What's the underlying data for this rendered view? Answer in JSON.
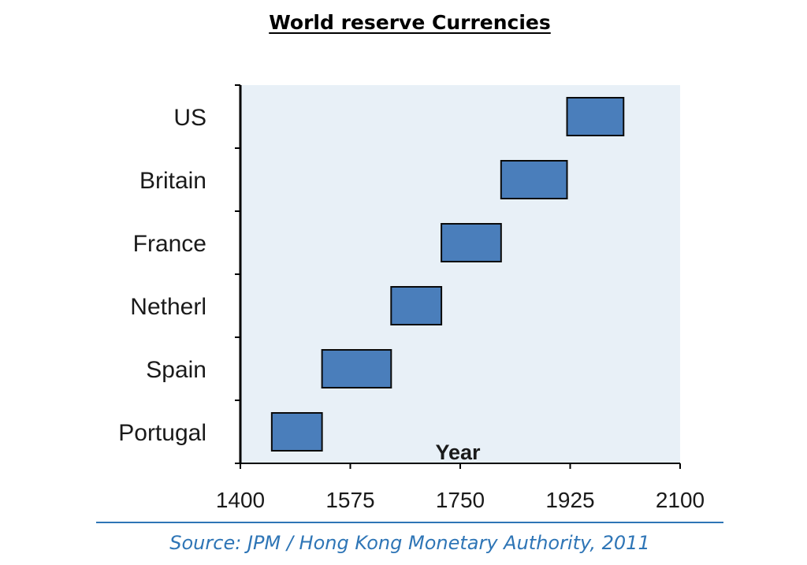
{
  "page": {
    "title": "World reserve Currencies",
    "source": "Source: JPM / Hong Kong Monetary Authority, 2011"
  },
  "chart_data": {
    "type": "bar",
    "orientation": "horizontal",
    "xlabel": "Year",
    "ylabel": "",
    "xlim": [
      1400,
      2100
    ],
    "x_ticks": [
      1400,
      1575,
      1750,
      1925,
      2100
    ],
    "categories": [
      "Portugal",
      "Spain",
      "Netherl",
      "France",
      "Britain",
      "US"
    ],
    "ranges": [
      {
        "category": "Portugal",
        "start": 1450,
        "end": 1530
      },
      {
        "category": "Spain",
        "start": 1530,
        "end": 1640
      },
      {
        "category": "Netherl",
        "start": 1640,
        "end": 1720
      },
      {
        "category": "France",
        "start": 1720,
        "end": 1815
      },
      {
        "category": "Britain",
        "start": 1815,
        "end": 1920
      },
      {
        "category": "US",
        "start": 1920,
        "end": 2010
      }
    ],
    "grid": false,
    "legend": "none",
    "colors": {
      "bar_fill": "#4a7ebb",
      "bar_stroke": "#0a0a0a",
      "plot_background": "#e8f0f7"
    }
  }
}
